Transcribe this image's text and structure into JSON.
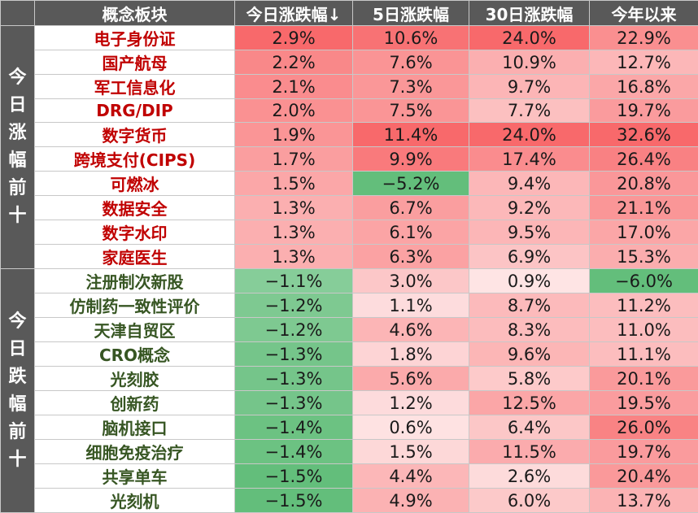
{
  "table": {
    "headers": [
      "概念板块",
      "今日涨跌幅↓",
      "5日涨跌幅",
      "30日涨跌幅",
      "今年以来"
    ],
    "groups": [
      {
        "label": "今日涨幅前十",
        "type": "up",
        "rows": [
          {
            "name": "电子身份证",
            "d1": 2.9,
            "d5": 10.6,
            "d30": 24.0,
            "ytd": 22.9
          },
          {
            "name": "国产航母",
            "d1": 2.2,
            "d5": 7.6,
            "d30": 10.9,
            "ytd": 12.7
          },
          {
            "name": "军工信息化",
            "d1": 2.1,
            "d5": 7.3,
            "d30": 9.7,
            "ytd": 16.8
          },
          {
            "name": "DRG/DIP",
            "d1": 2.0,
            "d5": 7.5,
            "d30": 7.7,
            "ytd": 19.7
          },
          {
            "name": "数字货币",
            "d1": 1.9,
            "d5": 11.4,
            "d30": 24.0,
            "ytd": 32.6
          },
          {
            "name": "跨境支付(CIPS)",
            "d1": 1.7,
            "d5": 9.9,
            "d30": 17.4,
            "ytd": 26.4
          },
          {
            "name": "可燃冰",
            "d1": 1.5,
            "d5": -5.2,
            "d30": 9.4,
            "ytd": 20.8
          },
          {
            "name": "数据安全",
            "d1": 1.3,
            "d5": 6.7,
            "d30": 9.2,
            "ytd": 21.1
          },
          {
            "name": "数字水印",
            "d1": 1.3,
            "d5": 6.1,
            "d30": 9.5,
            "ytd": 17.0
          },
          {
            "name": "家庭医生",
            "d1": 1.3,
            "d5": 6.3,
            "d30": 6.9,
            "ytd": 15.3
          }
        ]
      },
      {
        "label": "今日跌幅前十",
        "type": "down",
        "rows": [
          {
            "name": "注册制次新股",
            "d1": -1.1,
            "d5": 3.0,
            "d30": 0.9,
            "ytd": -6.0
          },
          {
            "name": "仿制药一致性评价",
            "d1": -1.2,
            "d5": 1.1,
            "d30": 8.7,
            "ytd": 11.2
          },
          {
            "name": "天津自贸区",
            "d1": -1.2,
            "d5": 4.6,
            "d30": 8.3,
            "ytd": 11.0
          },
          {
            "name": "CRO概念",
            "d1": -1.3,
            "d5": 1.8,
            "d30": 9.6,
            "ytd": 11.1
          },
          {
            "name": "光刻胶",
            "d1": -1.3,
            "d5": 5.6,
            "d30": 5.8,
            "ytd": 20.1
          },
          {
            "name": "创新药",
            "d1": -1.3,
            "d5": 1.2,
            "d30": 12.5,
            "ytd": 19.5
          },
          {
            "name": "脑机接口",
            "d1": -1.4,
            "d5": 0.6,
            "d30": 6.4,
            "ytd": 26.0
          },
          {
            "name": "细胞免疫治疗",
            "d1": -1.4,
            "d5": 1.5,
            "d30": 11.5,
            "ytd": 19.7
          },
          {
            "name": "共享单车",
            "d1": -1.5,
            "d5": 4.4,
            "d30": 2.6,
            "ytd": 20.4
          },
          {
            "name": "光刻机",
            "d1": -1.5,
            "d5": 4.9,
            "d30": 6.0,
            "ytd": 13.7
          }
        ]
      }
    ]
  },
  "colors": {
    "header_bg": "#595959",
    "up_text": "#c00000",
    "down_text": "#375623",
    "pos_max": "#f8696b",
    "neg_max": "#63be7b"
  }
}
